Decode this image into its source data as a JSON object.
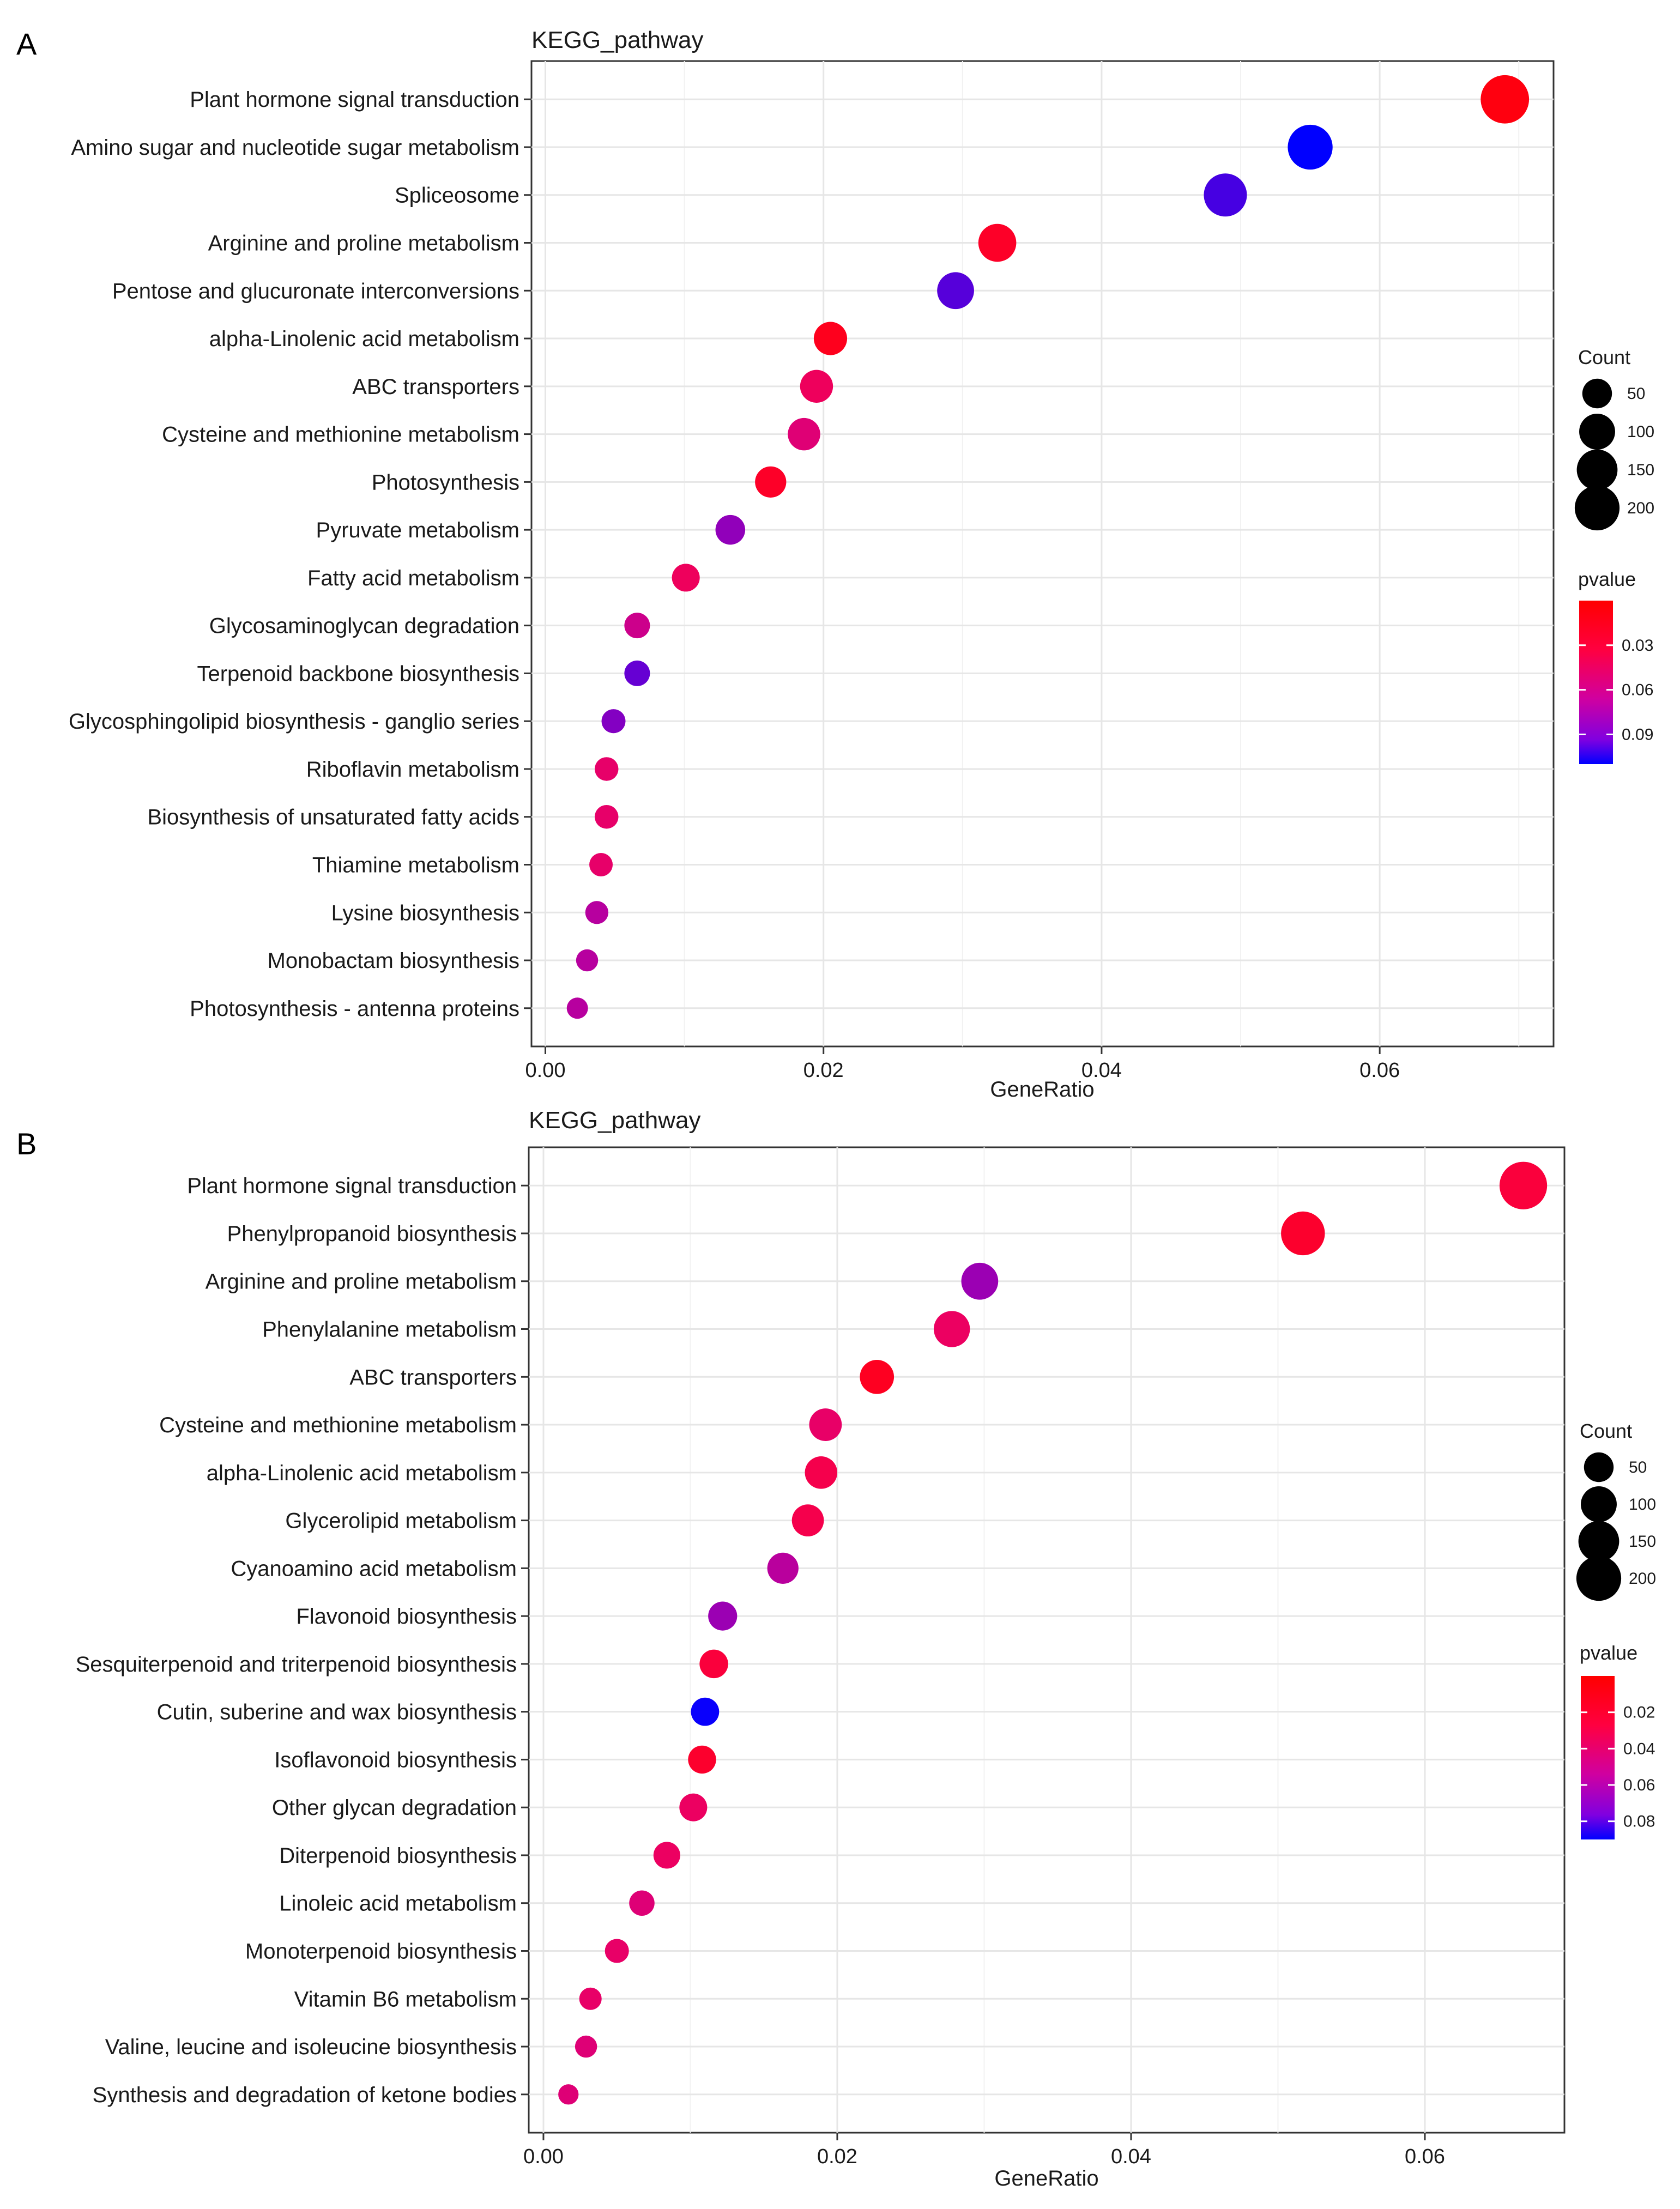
{
  "chart_data": [
    {
      "panel": "A",
      "type": "scatter",
      "title": "KEGG_pathway",
      "xlabel": "GeneRatio",
      "ylabel": "",
      "xlim": [
        -0.001,
        0.0725
      ],
      "xticks": [
        0.0,
        0.02,
        0.04,
        0.06
      ],
      "xtick_labels": [
        "0.00",
        "0.02",
        "0.04",
        "0.06"
      ],
      "grid": true,
      "categories": [
        "Plant hormone signal transduction",
        "Amino sugar and nucleotide sugar metabolism",
        "Spliceosome",
        "Arginine and proline metabolism",
        "Pentose and glucuronate interconversions",
        "alpha-Linolenic acid metabolism",
        "ABC transporters",
        "Cysteine and methionine metabolism",
        "Photosynthesis",
        "Pyruvate metabolism",
        "Fatty acid metabolism",
        "Glycosaminoglycan degradation",
        "Terpenoid backbone biosynthesis",
        "Glycosphingolipid biosynthesis - ganglio series",
        "Riboflavin metabolism",
        "Biosynthesis of unsaturated fatty acids",
        "Thiamine metabolism",
        "Lysine biosynthesis",
        "Monobactam biosynthesis",
        "Photosynthesis - antenna proteins"
      ],
      "gene_ratio": [
        0.069,
        0.055,
        0.0489,
        0.0325,
        0.0295,
        0.0205,
        0.0195,
        0.0186,
        0.0162,
        0.0133,
        0.0101,
        0.0066,
        0.0066,
        0.0049,
        0.0044,
        0.0044,
        0.004,
        0.0037,
        0.003,
        0.0023
      ],
      "count": [
        215,
        172,
        152,
        101,
        92,
        64,
        61,
        58,
        50,
        41,
        31,
        21,
        21,
        15,
        14,
        14,
        13,
        12,
        9,
        7
      ],
      "pvalue": [
        0.001,
        0.11,
        0.09,
        0.005,
        0.085,
        0.003,
        0.02,
        0.03,
        0.005,
        0.065,
        0.02,
        0.04,
        0.08,
        0.07,
        0.025,
        0.025,
        0.025,
        0.05,
        0.05,
        0.05
      ],
      "size_legend": {
        "title": "Count",
        "values": [
          50,
          100,
          150,
          200
        ],
        "labels": [
          "50",
          "100",
          "150",
          "200"
        ]
      },
      "color_legend": {
        "title": "pvalue",
        "low_color": "#FF0000",
        "high_color": "#0000FF",
        "range": [
          0.0,
          0.11
        ],
        "ticks": [
          0.03,
          0.06,
          0.09
        ],
        "tick_labels": [
          "0.03",
          "0.06",
          "0.09"
        ]
      },
      "legend_position": "right"
    },
    {
      "panel": "B",
      "type": "scatter",
      "title": "KEGG_pathway",
      "xlabel": "GeneRatio",
      "ylabel": "",
      "xlim": [
        -0.001,
        0.0695
      ],
      "xticks": [
        0.0,
        0.02,
        0.04,
        0.06
      ],
      "xtick_labels": [
        "0.00",
        "0.02",
        "0.04",
        "0.06"
      ],
      "grid": true,
      "categories": [
        "Plant hormone signal transduction",
        "Phenylpropanoid biosynthesis",
        "Arginine and proline metabolism",
        "Phenylalanine metabolism",
        "ABC transporters",
        "Cysteine and methionine metabolism",
        "alpha-Linolenic acid metabolism",
        "Glycerolipid metabolism",
        "Cyanoamino acid metabolism",
        "Flavonoid biosynthesis",
        "Sesquiterpenoid and triterpenoid biosynthesis",
        "Cutin, suberine and wax biosynthesis",
        "Isoflavonoid biosynthesis",
        "Other glycan degradation",
        "Diterpenoid biosynthesis",
        "Linoleic acid metabolism",
        "Monoterpenoid biosynthesis",
        "Vitamin B6 metabolism",
        "Valine, leucine and isoleucine biosynthesis",
        "Synthesis and degradation of ketone bodies"
      ],
      "gene_ratio": [
        0.0667,
        0.0517,
        0.0297,
        0.0278,
        0.0227,
        0.0192,
        0.0189,
        0.018,
        0.0163,
        0.0122,
        0.0116,
        0.011,
        0.0108,
        0.0102,
        0.0084,
        0.0067,
        0.005,
        0.0032,
        0.0029,
        0.0017
      ],
      "count": [
        205,
        160,
        92,
        86,
        70,
        59,
        58,
        55,
        50,
        37,
        35,
        33,
        32,
        31,
        26,
        20,
        15,
        10,
        9,
        5
      ],
      "pvalue": [
        0.008,
        0.005,
        0.05,
        0.018,
        0.003,
        0.02,
        0.012,
        0.012,
        0.04,
        0.05,
        0.008,
        0.088,
        0.005,
        0.018,
        0.018,
        0.025,
        0.02,
        0.02,
        0.025,
        0.025
      ],
      "size_legend": {
        "title": "Count",
        "values": [
          50,
          100,
          150,
          200
        ],
        "labels": [
          "50",
          "100",
          "150",
          "200"
        ]
      },
      "color_legend": {
        "title": "pvalue",
        "low_color": "#FF0000",
        "high_color": "#0000FF",
        "range": [
          0.0,
          0.09
        ],
        "ticks": [
          0.02,
          0.04,
          0.06,
          0.08
        ],
        "tick_labels": [
          "0.02",
          "0.04",
          "0.06",
          "0.08"
        ]
      },
      "legend_position": "right"
    }
  ]
}
